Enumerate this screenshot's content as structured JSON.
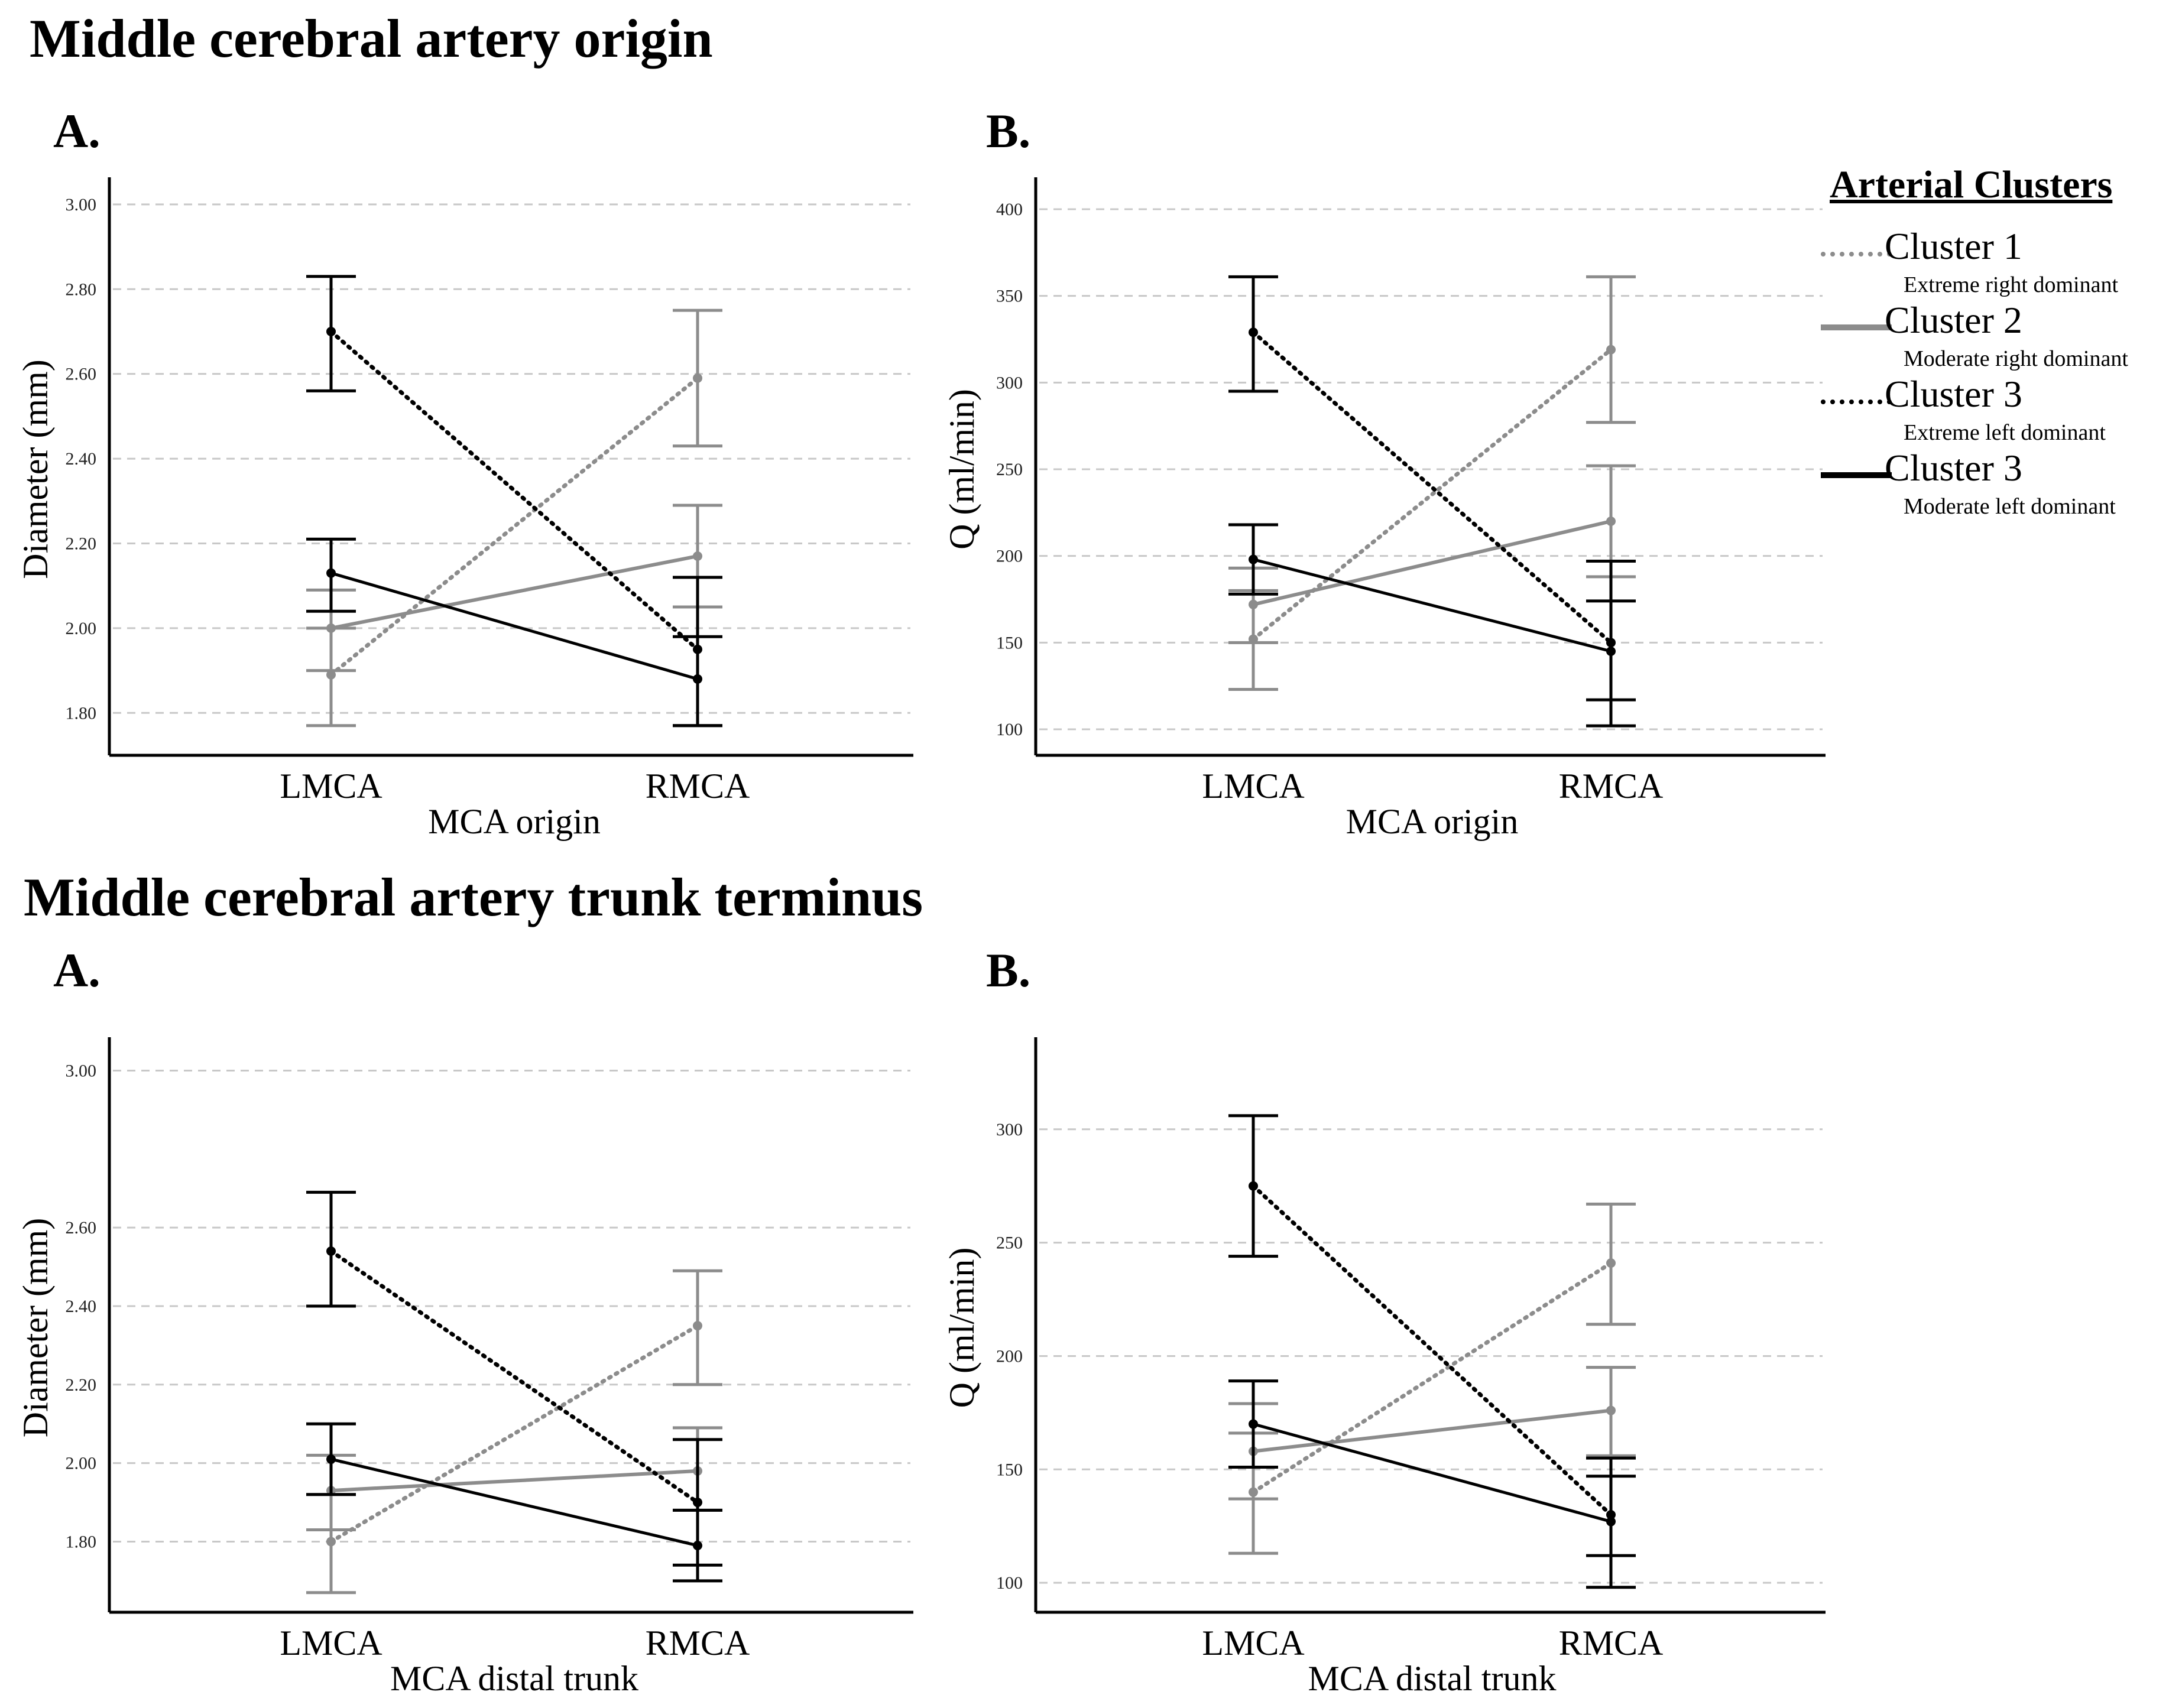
{
  "sections": [
    {
      "title": "Middle cerebral artery origin"
    },
    {
      "title": "Middle cerebral artery trunk terminus"
    }
  ],
  "legend": {
    "title": "Arterial Clusters",
    "items": [
      {
        "name": "Cluster 1",
        "desc": "Extreme right dominant",
        "style": "dotted",
        "color": "#8c8c8c"
      },
      {
        "name": "Cluster 2",
        "desc": "Moderate right dominant",
        "style": "solid",
        "color": "#8c8c8c"
      },
      {
        "name": "Cluster 3",
        "desc": "Extreme left dominant",
        "style": "dotted",
        "color": "#000000"
      },
      {
        "name": "Cluster 3",
        "desc": "Moderate left dominant",
        "style": "solid",
        "color": "#000000"
      }
    ]
  },
  "chart_data": [
    {
      "panel": "A.",
      "type": "line",
      "categories": [
        "LMCA",
        "RMCA"
      ],
      "xlabel": "MCA origin",
      "ylabel": "Diameter (mm)",
      "ylim": [
        1.7,
        3.05
      ],
      "yticks": [
        "1.80",
        "2.00",
        "2.20",
        "2.40",
        "2.60",
        "2.80",
        "3.00"
      ],
      "series": [
        {
          "name": "Cluster 1",
          "values": [
            1.89,
            2.59
          ],
          "err_low": [
            1.77,
            2.43
          ],
          "err_high": [
            2.0,
            2.75
          ]
        },
        {
          "name": "Cluster 2",
          "values": [
            2.0,
            2.17
          ],
          "err_low": [
            1.9,
            2.05
          ],
          "err_high": [
            2.09,
            2.29
          ]
        },
        {
          "name": "Cluster 3 (extreme)",
          "values": [
            2.7,
            1.95
          ],
          "err_low": [
            2.56,
            1.77
          ],
          "err_high": [
            2.83,
            2.12
          ]
        },
        {
          "name": "Cluster 3 (moderate)",
          "values": [
            2.13,
            1.88
          ],
          "err_low": [
            2.04,
            1.77
          ],
          "err_high": [
            2.21,
            1.98
          ]
        }
      ]
    },
    {
      "panel": "B.",
      "type": "line",
      "categories": [
        "LMCA",
        "RMCA"
      ],
      "xlabel": "MCA origin",
      "ylabel": "Q (ml/min)",
      "ylim": [
        85,
        415
      ],
      "yticks": [
        "100",
        "150",
        "200",
        "250",
        "300",
        "350",
        "400"
      ],
      "series": [
        {
          "name": "Cluster 1",
          "values": [
            152,
            319
          ],
          "err_low": [
            123,
            277
          ],
          "err_high": [
            180,
            361
          ]
        },
        {
          "name": "Cluster 2",
          "values": [
            172,
            220
          ],
          "err_low": [
            150,
            188
          ],
          "err_high": [
            193,
            252
          ]
        },
        {
          "name": "Cluster 3 (extreme)",
          "values": [
            329,
            150
          ],
          "err_low": [
            295,
            102
          ],
          "err_high": [
            361,
            197
          ]
        },
        {
          "name": "Cluster 3 (moderate)",
          "values": [
            198,
            145
          ],
          "err_low": [
            178,
            117
          ],
          "err_high": [
            218,
            174
          ]
        }
      ]
    },
    {
      "panel": "A.",
      "type": "line",
      "categories": [
        "LMCA",
        "RMCA"
      ],
      "xlabel": "MCA distal trunk",
      "ylabel": "Diameter (mm)",
      "ylim": [
        1.62,
        3.07
      ],
      "yticks": [
        "1.80",
        "2.00",
        "2.20",
        "2.40",
        "2.60",
        "3.00"
      ],
      "ytick_values": [
        1.8,
        2.0,
        2.2,
        2.4,
        2.6,
        3.0
      ],
      "series": [
        {
          "name": "Cluster 1",
          "values": [
            1.8,
            2.35
          ],
          "err_low": [
            1.67,
            2.2
          ],
          "err_high": [
            1.92,
            2.49
          ]
        },
        {
          "name": "Cluster 2",
          "values": [
            1.93,
            1.98
          ],
          "err_low": [
            1.83,
            1.88
          ],
          "err_high": [
            2.02,
            2.09
          ]
        },
        {
          "name": "Cluster 3 (extreme)",
          "values": [
            2.54,
            1.9
          ],
          "err_low": [
            2.4,
            1.74
          ],
          "err_high": [
            2.69,
            2.06
          ]
        },
        {
          "name": "Cluster 3 (moderate)",
          "values": [
            2.01,
            1.79
          ],
          "err_low": [
            1.92,
            1.7
          ],
          "err_high": [
            2.1,
            1.88
          ]
        }
      ]
    },
    {
      "panel": "B.",
      "type": "line",
      "categories": [
        "LMCA",
        "RMCA"
      ],
      "xlabel": "MCA distal trunk",
      "ylabel": "Q (ml/min)",
      "ylim": [
        87,
        338
      ],
      "yticks": [
        "100",
        "150",
        "200",
        "250",
        "300"
      ],
      "series": [
        {
          "name": "Cluster 1",
          "values": [
            140,
            241
          ],
          "err_low": [
            113,
            214
          ],
          "err_high": [
            166,
            267
          ]
        },
        {
          "name": "Cluster 2",
          "values": [
            158,
            176
          ],
          "err_low": [
            137,
            156
          ],
          "err_high": [
            179,
            195
          ]
        },
        {
          "name": "Cluster 3 (extreme)",
          "values": [
            275,
            130
          ],
          "err_low": [
            244,
            112
          ],
          "err_high": [
            306,
            147
          ]
        },
        {
          "name": "Cluster 3 (moderate)",
          "values": [
            170,
            127
          ],
          "err_low": [
            151,
            98
          ],
          "err_high": [
            189,
            155
          ]
        }
      ]
    }
  ]
}
